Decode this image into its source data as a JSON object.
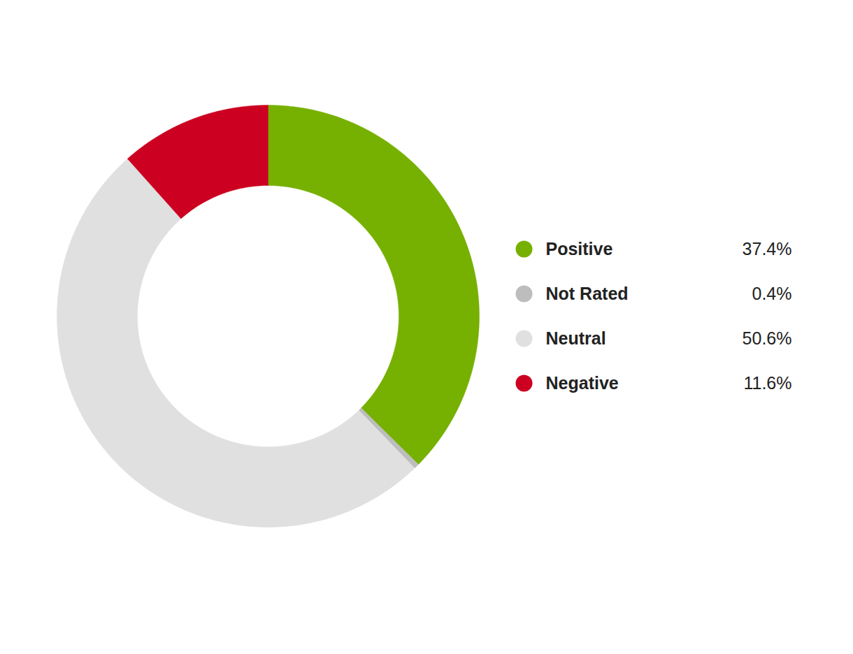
{
  "chart_data": {
    "type": "pie",
    "categories": [
      "Positive",
      "Not Rated",
      "Neutral",
      "Negative"
    ],
    "values": [
      37.4,
      0.4,
      50.6,
      11.6
    ],
    "value_labels": [
      "37.4%",
      "0.4%",
      "50.6%",
      "11.6%"
    ],
    "colors": [
      "#76b000",
      "#bdbdbd",
      "#e0e0e0",
      "#cc0020"
    ],
    "legend": "right"
  }
}
